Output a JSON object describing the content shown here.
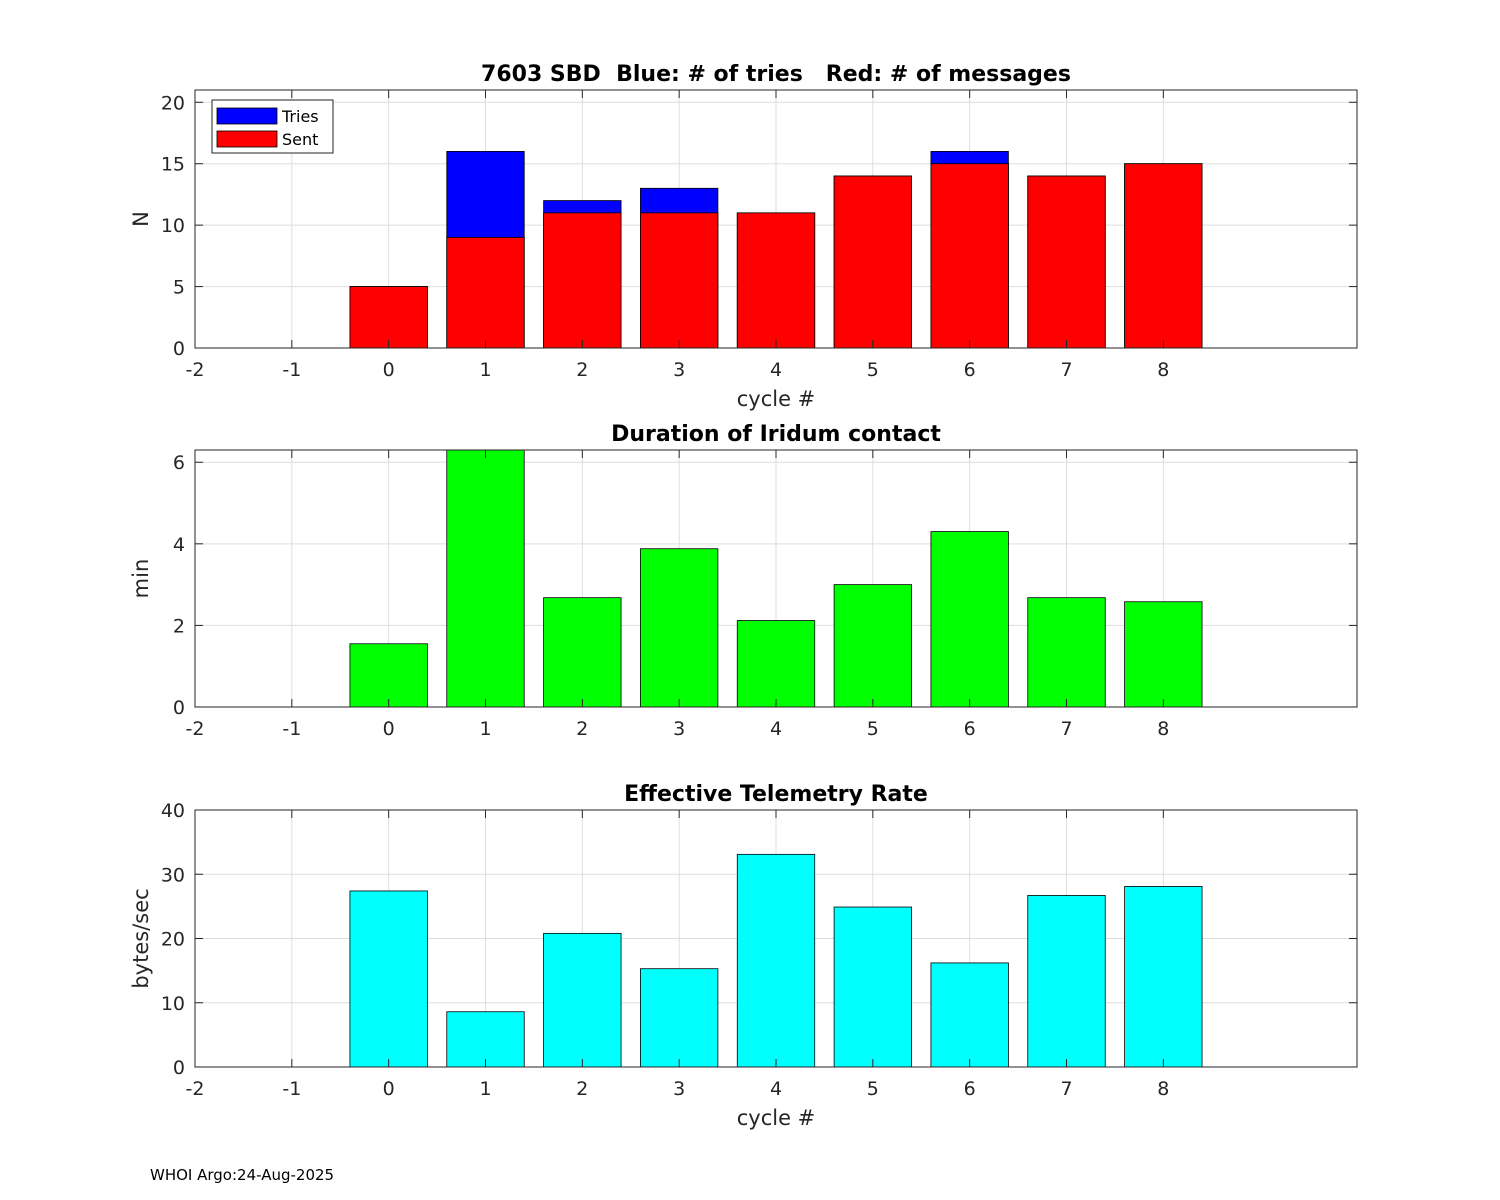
{
  "footer": "WHOI Argo:24-Aug-2025",
  "chart_data": [
    {
      "type": "bar",
      "title": "7603 SBD  Blue: # of tries   Red: # of messages",
      "xlabel": "cycle #",
      "ylabel": "N",
      "xlim": [
        -2,
        10
      ],
      "ylim": [
        0,
        21
      ],
      "xticks": [
        "-2",
        "-1",
        "0",
        "1",
        "2",
        "3",
        "4",
        "5",
        "6",
        "7",
        "8"
      ],
      "yticks": [
        "0",
        "5",
        "10",
        "15",
        "20"
      ],
      "grid": true,
      "legend": "top-left",
      "categories": [
        0,
        1,
        2,
        3,
        4,
        5,
        6,
        7,
        8
      ],
      "series": [
        {
          "name": "Tries",
          "color": "#0000ff",
          "values": [
            5,
            16,
            12,
            13,
            11,
            14,
            16,
            14,
            15
          ]
        },
        {
          "name": "Sent",
          "color": "#ff0000",
          "values": [
            5,
            9,
            11,
            11,
            11,
            14,
            15,
            14,
            15
          ]
        }
      ]
    },
    {
      "type": "bar",
      "title": "Duration of Iridum contact",
      "xlabel": "",
      "ylabel": "min",
      "xlim": [
        -2,
        10
      ],
      "ylim": [
        0,
        6.3
      ],
      "xticks": [
        "-2",
        "-1",
        "0",
        "1",
        "2",
        "3",
        "4",
        "5",
        "6",
        "7",
        "8"
      ],
      "yticks": [
        "0",
        "2",
        "4",
        "6"
      ],
      "grid": true,
      "categories": [
        0,
        1,
        2,
        3,
        4,
        5,
        6,
        7,
        8
      ],
      "series": [
        {
          "name": "Duration",
          "color": "#00ff00",
          "values": [
            1.55,
            6.5,
            2.68,
            3.88,
            2.12,
            3.0,
            4.3,
            2.68,
            2.58
          ]
        }
      ]
    },
    {
      "type": "bar",
      "title": "Effective Telemetry Rate",
      "xlabel": "cycle #",
      "ylabel": "bytes/sec",
      "xlim": [
        -2,
        10
      ],
      "ylim": [
        0,
        40
      ],
      "xticks": [
        "-2",
        "-1",
        "0",
        "1",
        "2",
        "3",
        "4",
        "5",
        "6",
        "7",
        "8"
      ],
      "yticks": [
        "0",
        "10",
        "20",
        "30",
        "40"
      ],
      "grid": true,
      "categories": [
        0,
        1,
        2,
        3,
        4,
        5,
        6,
        7,
        8
      ],
      "series": [
        {
          "name": "Rate",
          "color": "#00ffff",
          "values": [
            27.4,
            8.6,
            20.8,
            15.3,
            33.1,
            24.9,
            16.2,
            26.7,
            28.1
          ]
        }
      ]
    }
  ]
}
